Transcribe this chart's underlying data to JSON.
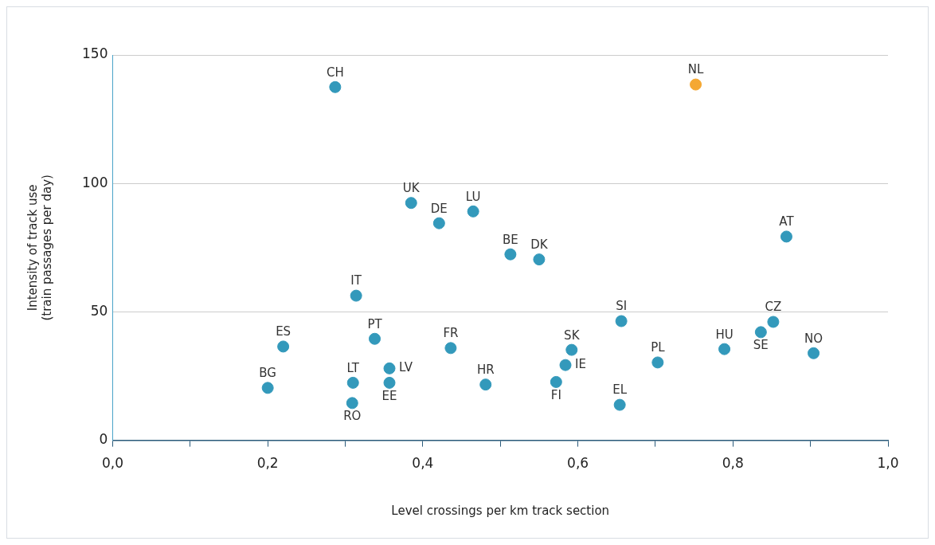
{
  "chart_data": {
    "type": "scatter",
    "xlabel": "Level crossings per km track section",
    "ylabel": "Intensity of track use\n(train passages per day)",
    "xlim": [
      0,
      1
    ],
    "ylim": [
      0,
      150
    ],
    "xticks": [
      {
        "value": 0,
        "label": "0,0"
      },
      {
        "value": 0.1,
        "label": null
      },
      {
        "value": 0.2,
        "label": "0,2"
      },
      {
        "value": 0.3,
        "label": null
      },
      {
        "value": 0.4,
        "label": "0,4"
      },
      {
        "value": 0.5,
        "label": null
      },
      {
        "value": 0.6,
        "label": "0,6"
      },
      {
        "value": 0.7,
        "label": null
      },
      {
        "value": 0.8,
        "label": "0,8"
      },
      {
        "value": 0.9,
        "label": null
      },
      {
        "value": 1,
        "label": "1,0"
      }
    ],
    "yticks": [
      0,
      50,
      100,
      150
    ],
    "grid": "y",
    "legend": false,
    "marker": "circle",
    "series": [
      {
        "color": "#3399bb",
        "x": [
          0.287,
          0.385,
          0.421,
          0.465,
          0.513,
          0.55,
          0.869,
          0.314,
          0.656,
          0.852,
          0.836,
          0.789,
          0.904,
          0.703,
          0.22,
          0.338,
          0.436,
          0.592,
          0.584,
          0.357,
          0.357,
          0.31,
          0.481,
          0.572,
          0.2,
          0.309,
          0.654
        ],
        "values": [
          137.5,
          92.4,
          84.5,
          89.1,
          72.4,
          70.4,
          79.3,
          56.3,
          46.4,
          46.1,
          42.1,
          35.5,
          33.9,
          30.3,
          36.5,
          39.5,
          35.9,
          35.2,
          29.3,
          28.0,
          22.4,
          22.4,
          21.7,
          22.7,
          20.4,
          14.5,
          13.8
        ],
        "value_labels": [
          "CH",
          "UK",
          "DE",
          "LU",
          "BE",
          "DK",
          "AT",
          "IT",
          "SI",
          "CZ",
          "SE",
          "HU",
          "NO",
          "PL",
          "ES",
          "PT",
          "FR",
          "SK",
          "IE",
          "LV",
          "EE",
          "LT",
          "HR",
          "FI",
          "BG",
          "RO",
          "EL"
        ]
      },
      {
        "color": "#f5a833",
        "x": [
          0.752
        ],
        "values": [
          138.5
        ],
        "value_labels": [
          "NL"
        ]
      }
    ]
  }
}
